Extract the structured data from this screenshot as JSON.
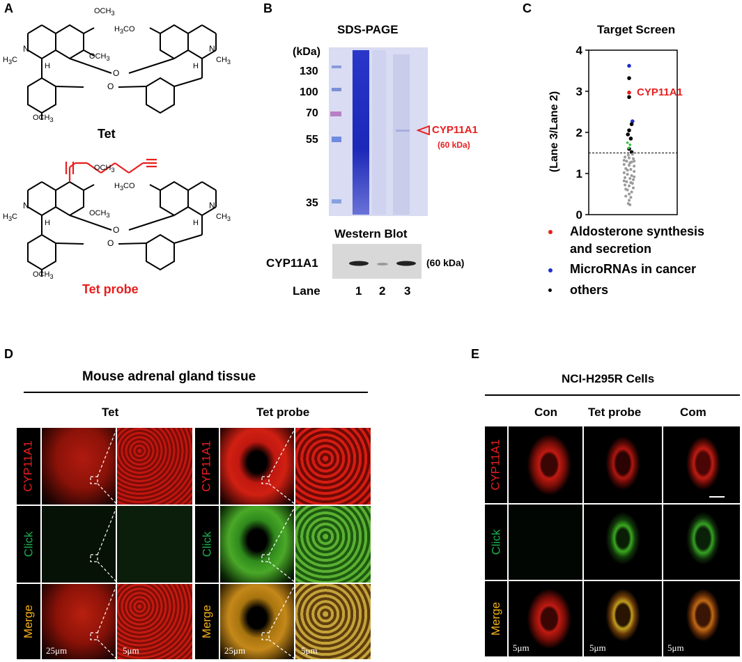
{
  "panels": {
    "A": {
      "letter": "A",
      "tet_label": "Tet",
      "probe_label": "Tet probe",
      "atoms": {
        "ome": "OCH",
        "ome_sub": "3",
        "meo_h3c": "H",
        "meo_3": "3",
        "meo_co": "CO",
        "ch3": "CH",
        "ch3_sub": "3",
        "h3c": "H",
        "h3c_sub": "3",
        "h3c_c": "C",
        "n": "N",
        "h": "H",
        "o": "O"
      }
    },
    "B": {
      "letter": "B",
      "title": "SDS-PAGE",
      "kda_label": "(kDa)",
      "markers": [
        "130",
        "100",
        "70",
        "55",
        "35"
      ],
      "arrow_label": "CYP11A1",
      "arrow_sub": "(60 kDa)",
      "wb_title": "Western Blot",
      "wb_row_label": "CYP11A1",
      "wb_kda": "(60 kDa)",
      "lane_label": "Lane",
      "lanes": [
        "1",
        "2",
        "3"
      ]
    },
    "C": {
      "letter": "C",
      "title": "Target Screen",
      "ylabel": "(Lane 3/Lane 2)",
      "highlight_label": "CYP11A1",
      "legend": [
        {
          "label": "Aldosterone synthesis",
          "label2": "and secretion",
          "color": "#e81e1e"
        },
        {
          "label": "MicroRNAs in cancer",
          "label2": "",
          "color": "#1f2fd1"
        },
        {
          "label": "others",
          "label2": "",
          "color": "#000000"
        }
      ]
    },
    "D": {
      "letter": "D",
      "title": "Mouse adrenal gland tissue",
      "groups": [
        "Tet",
        "Tet probe"
      ],
      "rows": [
        "CYP11A1",
        "Click",
        "Merge"
      ],
      "scale_large": "25μm",
      "scale_small": "5μm"
    },
    "E": {
      "letter": "E",
      "title": "NCI-H295R Cells",
      "columns": [
        "Con",
        "Tet probe",
        "Com"
      ],
      "rows": [
        "CYP11A1",
        "Click",
        "Merge"
      ],
      "scale": "5μm"
    }
  },
  "chart_data": {
    "type": "scatter",
    "title": "Target Screen",
    "xlabel": "",
    "ylabel": "(Lane 3/Lane 2)",
    "ylim": [
      0,
      4
    ],
    "yticks": [
      0,
      1,
      2,
      3,
      4
    ],
    "threshold": 1.5,
    "series": [
      {
        "name": "Aldosterone synthesis and secretion",
        "color": "#e81e1e",
        "points": [
          [
            0,
            2.97
          ]
        ]
      },
      {
        "name": "MicroRNAs in cancer",
        "color": "#1f2fd1",
        "points": [
          [
            0,
            3.62
          ],
          [
            0.4,
            2.27
          ]
        ]
      },
      {
        "name": "others",
        "color": "#000000",
        "points": [
          [
            0,
            3.32
          ],
          [
            0,
            2.86
          ],
          [
            0.3,
            2.2
          ],
          [
            0,
            2.05
          ],
          [
            -0.15,
            1.95
          ],
          [
            0.2,
            1.85
          ],
          [
            0,
            1.6
          ],
          [
            0.3,
            1.52
          ]
        ]
      },
      {
        "color": "#2dc43c",
        "points": [
          [
            -0.2,
            1.75
          ],
          [
            0.1,
            1.7
          ],
          [
            -0.05,
            1.62
          ]
        ]
      },
      {
        "color": "#9a9a9a",
        "points": [
          [
            -0.5,
            1.4
          ],
          [
            0,
            1.38
          ],
          [
            0.5,
            1.36
          ],
          [
            -0.3,
            1.3
          ],
          [
            0.3,
            1.28
          ],
          [
            -0.6,
            1.22
          ],
          [
            0,
            1.2
          ],
          [
            0.6,
            1.18
          ],
          [
            -0.4,
            1.12
          ],
          [
            0.2,
            1.1
          ],
          [
            0.6,
            1.05
          ],
          [
            -0.6,
            1.02
          ],
          [
            -0.2,
            0.98
          ],
          [
            0.3,
            0.95
          ],
          [
            -0.5,
            0.9
          ],
          [
            0.1,
            0.88
          ],
          [
            0.5,
            0.85
          ],
          [
            -0.3,
            0.8
          ],
          [
            0.4,
            0.76
          ],
          [
            -0.5,
            0.72
          ],
          [
            0,
            0.7
          ],
          [
            0.5,
            0.65
          ],
          [
            -0.2,
            0.6
          ],
          [
            0.3,
            0.55
          ],
          [
            0,
            0.5
          ],
          [
            -0.4,
            0.45
          ],
          [
            0.2,
            0.42
          ],
          [
            0,
            0.35
          ],
          [
            -0.1,
            0.27
          ],
          [
            0.1,
            0.24
          ],
          [
            -0.6,
            1.32
          ],
          [
            0.6,
            1.3
          ],
          [
            -0.1,
            1.45
          ],
          [
            0.4,
            1.47
          ],
          [
            -0.4,
            0.62
          ],
          [
            0.6,
            0.92
          ],
          [
            -0.6,
            0.82
          ],
          [
            0.1,
            1.26
          ],
          [
            -0.2,
            1.08
          ],
          [
            0.2,
            0.78
          ]
        ]
      }
    ]
  }
}
